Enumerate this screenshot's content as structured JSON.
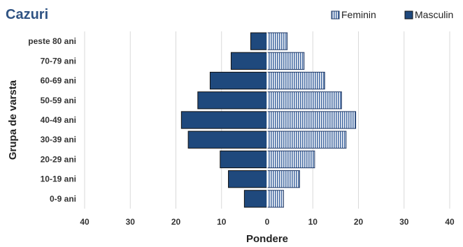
{
  "chart_data": {
    "type": "bar",
    "orientation": "horizontal",
    "layout": "population-pyramid",
    "title": "Cazuri",
    "xlabel": "Pondere",
    "ylabel": "Grupa de varsta",
    "categories": [
      "0-9 ani",
      "10-19 ani",
      "20-29 ani",
      "30-39 ani",
      "40-49 ani",
      "50-59 ani",
      "60-69 ani",
      "70-79 ani",
      "peste 80 ani"
    ],
    "series": [
      {
        "name": "Masculin",
        "values": [
          5,
          8.5,
          10.3,
          17.3,
          18.8,
          15.2,
          12.5,
          7.9,
          3.6
        ],
        "side": "left",
        "color": "#1f497d",
        "pattern": "solid"
      },
      {
        "name": "Feminin",
        "values": [
          3.6,
          7.1,
          10.4,
          17.3,
          19.4,
          16.3,
          12.6,
          8.1,
          4.4
        ],
        "side": "right",
        "color": "#4a6fa5",
        "pattern": "vertical-stripes"
      }
    ],
    "xticks": [
      "40",
      "30",
      "20",
      "10",
      "0",
      "10",
      "20",
      "30",
      "40"
    ],
    "xlim": [
      -40,
      40
    ],
    "grid": "vertical",
    "legend": "top-right"
  }
}
